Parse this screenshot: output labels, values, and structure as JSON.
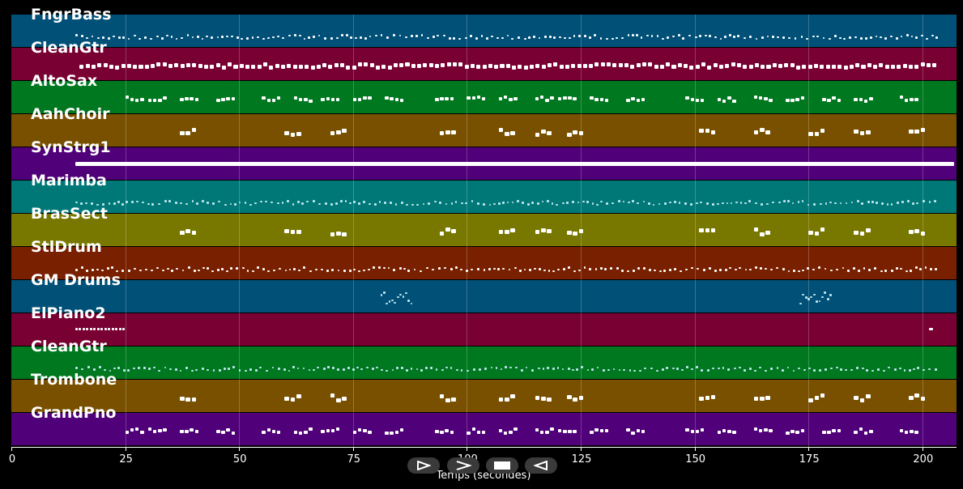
{
  "tracks": [
    {
      "name": "FngrBass",
      "color": "#005078",
      "pattern": "dense"
    },
    {
      "name": "CleanGtr",
      "color": "#780032",
      "pattern": "blocks"
    },
    {
      "name": "AltoSax",
      "color": "#007820",
      "pattern": "phrases"
    },
    {
      "name": "AahChoir",
      "color": "#785000",
      "pattern": "sparse"
    },
    {
      "name": "SynStrg1",
      "color": "#500078",
      "pattern": "sustain"
    },
    {
      "name": "Marimba",
      "color": "#007878",
      "pattern": "dense"
    },
    {
      "name": "BrasSect",
      "color": "#787800",
      "pattern": "sparse"
    },
    {
      "name": "StlDrum",
      "color": "#782000",
      "pattern": "dense"
    },
    {
      "name": "GM Drums",
      "color": "#005078",
      "pattern": "fills"
    },
    {
      "name": "ElPiano2",
      "color": "#780032",
      "pattern": "edge"
    },
    {
      "name": "CleanGtr",
      "color": "#007820",
      "pattern": "dense"
    },
    {
      "name": "Trombone",
      "color": "#785000",
      "pattern": "sparse"
    },
    {
      "name": "GrandPno",
      "color": "#500078",
      "pattern": "phrases"
    }
  ],
  "axis": {
    "label": "Temps (secondes)",
    "ticks": [
      "0",
      "25",
      "50",
      "75",
      "100",
      "125",
      "150",
      "175",
      "200"
    ],
    "tick_values": [
      0,
      25,
      50,
      75,
      100,
      125,
      150,
      175,
      200
    ],
    "min": 0,
    "max": 207.5
  },
  "controls": [
    {
      "name": "play-outline-icon"
    },
    {
      "name": "chevron-right-icon"
    },
    {
      "name": "stop-icon"
    },
    {
      "name": "rewind-icon"
    }
  ]
}
